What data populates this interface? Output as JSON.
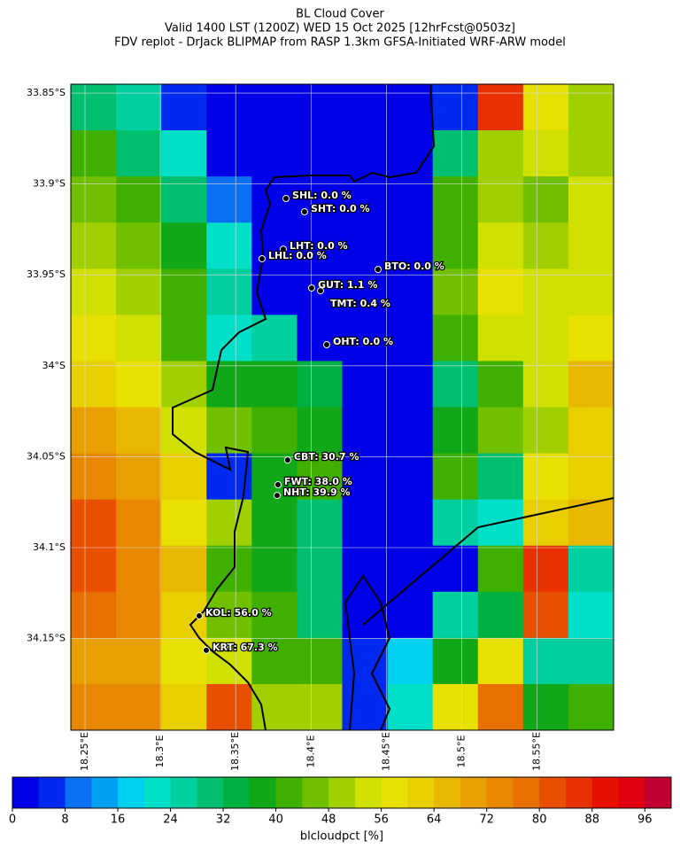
{
  "chart_data": {
    "type": "heatmap-map",
    "title": [
      "BL Cloud Cover",
      "Valid 1400 LST (1200Z) WED 15 Oct 2025 [12hrFcst@0503z]",
      "FDV replot - DrJack BLIPMAP from RASP 1.3km GFSA-Initiated WRF-ARW model"
    ],
    "xlim": [
      18.2406,
      18.6008
    ],
    "ylim": [
      33.8451,
      34.2004
    ],
    "xticks": [
      {
        "value": 18.25,
        "label": "18.25°E"
      },
      {
        "value": 18.3,
        "label": "18.3°E"
      },
      {
        "value": 18.35,
        "label": "18.35°E"
      },
      {
        "value": 18.4,
        "label": "18.4°E"
      },
      {
        "value": 18.45,
        "label": "18.45°E"
      },
      {
        "value": 18.5,
        "label": "18.5°E"
      },
      {
        "value": 18.55,
        "label": "18.55°E"
      }
    ],
    "yticks": [
      {
        "value": 33.85,
        "label": "33.85°S"
      },
      {
        "value": 33.9,
        "label": "33.9°S"
      },
      {
        "value": 33.95,
        "label": "33.95°S"
      },
      {
        "value": 34,
        "label": "34°S"
      },
      {
        "value": 34.05,
        "label": "34.05°S"
      },
      {
        "value": 34.1,
        "label": "34.1°S"
      },
      {
        "value": 34.15,
        "label": "34.15°S"
      }
    ],
    "grid_values": [
      [
        28,
        24,
        4,
        2,
        2,
        2,
        2,
        2,
        4,
        84,
        56,
        48
      ],
      [
        40,
        30,
        20,
        2,
        2,
        2,
        2,
        2,
        30,
        48,
        52,
        48
      ],
      [
        44,
        40,
        28,
        10,
        2,
        2,
        2,
        2,
        40,
        48,
        44,
        52
      ],
      [
        50,
        44,
        36,
        20,
        2,
        2,
        2,
        2,
        40,
        52,
        48,
        52
      ],
      [
        52,
        48,
        40,
        24,
        2,
        2,
        2,
        2,
        44,
        56,
        52,
        52
      ],
      [
        56,
        52,
        40,
        20,
        24,
        2,
        2,
        2,
        40,
        52,
        52,
        56
      ],
      [
        60,
        56,
        48,
        36,
        36,
        32,
        2,
        2,
        30,
        40,
        52,
        64
      ],
      [
        68,
        64,
        52,
        44,
        40,
        36,
        2,
        2,
        36,
        44,
        48,
        60
      ],
      [
        72,
        68,
        60,
        4,
        36,
        40,
        2,
        2,
        40,
        28,
        56,
        60
      ],
      [
        80,
        72,
        56,
        48,
        36,
        28,
        2,
        2,
        24,
        20,
        60,
        64
      ],
      [
        80,
        72,
        64,
        40,
        36,
        30,
        2,
        2,
        2,
        40,
        84,
        24
      ],
      [
        76,
        72,
        60,
        44,
        40,
        28,
        2,
        2,
        24,
        32,
        80,
        20
      ],
      [
        68,
        68,
        56,
        52,
        40,
        40,
        4,
        16,
        36,
        56,
        24,
        24
      ],
      [
        72,
        72,
        60,
        80,
        48,
        48,
        4,
        20,
        56,
        76,
        36,
        40
      ]
    ],
    "stations": [
      {
        "label": "SHL: 0.0 %",
        "lon": 18.3834,
        "lat": 33.908
      },
      {
        "label": "SHT: 0.0 %",
        "lon": 18.3957,
        "lat": 33.9153
      },
      {
        "label": "LHT: 0.0 %",
        "lon": 18.3816,
        "lat": 33.9358
      },
      {
        "label": "LHL: 0.0 %",
        "lon": 18.3675,
        "lat": 33.9411
      },
      {
        "label": "BTO: 0.0 %",
        "lon": 18.4445,
        "lat": 33.947
      },
      {
        "label": "GUT: 1.1 %",
        "lon": 18.4004,
        "lat": 33.9572
      },
      {
        "label": "TMT: 0.4 %",
        "lon": 18.4063,
        "lat": 33.9587
      },
      {
        "label": "OHT: 0.0 %",
        "lon": 18.4104,
        "lat": 33.9884
      },
      {
        "label": "CBT: 30.7 %",
        "lon": 18.3845,
        "lat": 34.0518
      },
      {
        "label": "FWT: 38.0 %",
        "lon": 18.3781,
        "lat": 34.0654
      },
      {
        "label": "NHT: 39.9 %",
        "lon": 18.3775,
        "lat": 34.0713
      },
      {
        "label": "KOL: 56.0 %",
        "lon": 18.3258,
        "lat": 34.1375
      },
      {
        "label": "KRT: 67.3 %",
        "lon": 18.3305,
        "lat": 34.1565
      }
    ],
    "colorbar": {
      "label": "blcloudpct [%]",
      "lim": [
        0,
        100
      ],
      "ticks": [
        0,
        8,
        16,
        24,
        32,
        40,
        48,
        56,
        64,
        72,
        80,
        88,
        96
      ],
      "colors": [
        "#0000e8",
        "#0029f0",
        "#0a6ff0",
        "#00a0f0",
        "#00d0f0",
        "#00e0c8",
        "#00d0a0",
        "#00c070",
        "#00b040",
        "#10a818",
        "#40b000",
        "#70c000",
        "#a0d000",
        "#d0e000",
        "#e8e000",
        "#e8d000",
        "#e8b800",
        "#e8a000",
        "#e88800",
        "#e87000",
        "#e85000",
        "#e83000",
        "#e81000",
        "#e00010",
        "#c00030"
      ]
    }
  }
}
